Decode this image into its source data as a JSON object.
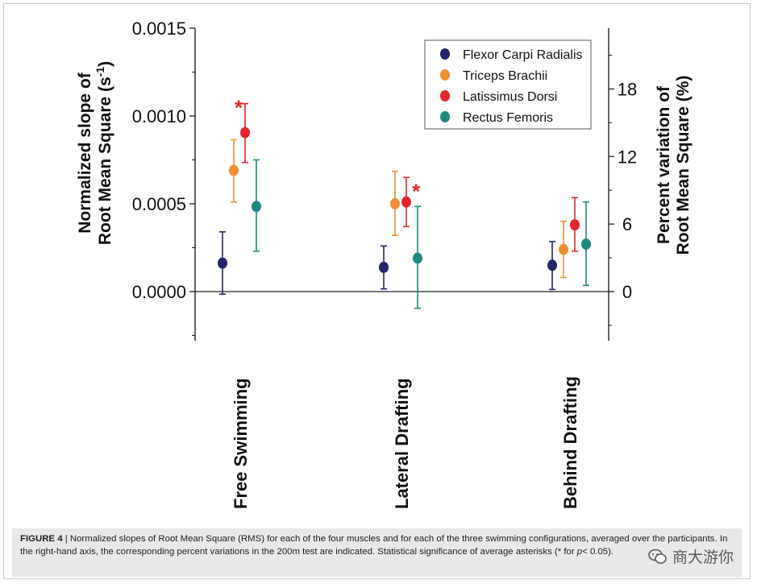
{
  "chart_data": {
    "type": "scatter",
    "categories": [
      "Free Swimming",
      "Lateral Drafting",
      "Behind Drafting"
    ],
    "ylabel_left": [
      "Normalized slope of",
      "Root Mean Square (s",
      ")"
    ],
    "ylabel_left_sup": "-1",
    "ylabel_right": [
      "Percent variation of",
      "Root Mean Square (%)"
    ],
    "yticks_left": [
      "0.0000",
      "0.0005",
      "0.0010",
      "0.0015"
    ],
    "yticks_left_values": [
      0,
      0.0005,
      0.001,
      0.0015
    ],
    "ylim_left": [
      -0.00028,
      0.0015
    ],
    "yticks_right": [
      "0",
      "6",
      "12",
      "18"
    ],
    "yticks_right_values": [
      0,
      6,
      12,
      18
    ],
    "ylim_right_at_left_top": 23.4,
    "legend_placement": "top-right",
    "series": [
      {
        "name": "Flexor Carpi Radialis",
        "color": "#23246e",
        "values": [
          0.000162,
          0.000138,
          0.00015
        ],
        "err_low": [
          -1.5e-05,
          1.5e-05,
          1.2e-05
        ],
        "err_high": [
          0.00034,
          0.00026,
          0.000285
        ],
        "sig": [
          false,
          false,
          false
        ]
      },
      {
        "name": "Triceps Brachii",
        "color": "#f08f32",
        "values": [
          0.00069,
          0.0005,
          0.00024
        ],
        "err_low": [
          0.00051,
          0.00032,
          8e-05
        ],
        "err_high": [
          0.000865,
          0.000685,
          0.0004
        ],
        "sig": [
          false,
          false,
          false
        ]
      },
      {
        "name": "Latissimus Dorsi",
        "color": "#e0262a",
        "values": [
          0.000905,
          0.00051,
          0.00038
        ],
        "err_low": [
          0.000735,
          0.00037,
          0.00023
        ],
        "err_high": [
          0.00107,
          0.00065,
          0.000535
        ],
        "sig": [
          true,
          true,
          false
        ]
      },
      {
        "name": "Rectus Femoris",
        "color": "#1f8a80",
        "values": [
          0.000485,
          0.00019,
          0.00027
        ],
        "err_low": [
          0.00023,
          -9.5e-05,
          3.5e-05
        ],
        "err_high": [
          0.00075,
          0.000485,
          0.00051
        ],
        "sig": [
          false,
          false,
          false
        ]
      }
    ],
    "significance_marker": "*"
  },
  "caption": {
    "label": "FIGURE 4",
    "separator": "|",
    "text_1": "Normalized slopes of Root Mean Square (RMS) for each of the four muscles and for each of the three swimming configurations, averaged over the participants. In the right-hand axis, the corresponding percent variations in the 200m test are indicated. Statistical significance of average",
    "text_2": "asterisks (* for",
    "p_symbol": "p",
    "text_3": "< 0.05)."
  },
  "watermark": {
    "text": "商大游你"
  }
}
